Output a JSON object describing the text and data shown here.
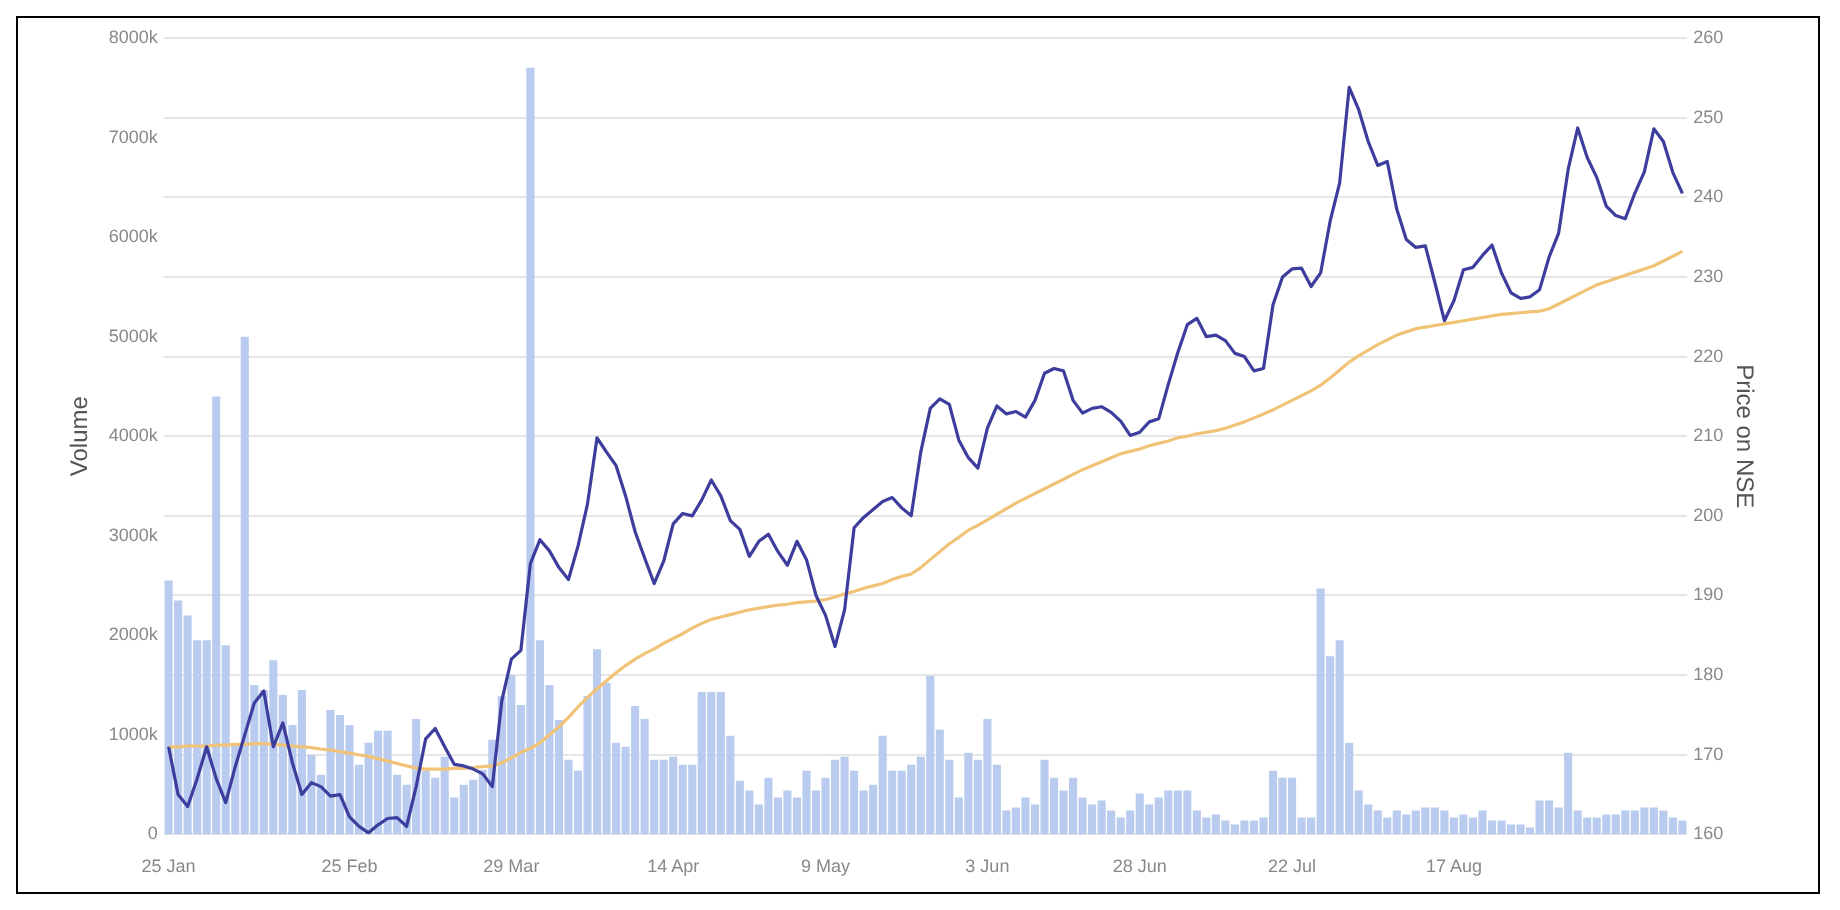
{
  "chart_data": {
    "type": "bar",
    "xlabel": null,
    "ylabel": "Volume",
    "y2label": "Price on NSE",
    "categories": [
      "25 Jan",
      null,
      null,
      null,
      null,
      null,
      null,
      null,
      null,
      null,
      null,
      null,
      null,
      null,
      null,
      null,
      null,
      null,
      null,
      "25 Feb",
      null,
      null,
      null,
      null,
      null,
      null,
      null,
      null,
      null,
      null,
      null,
      null,
      null,
      null,
      null,
      null,
      "29 Mar",
      null,
      null,
      null,
      null,
      null,
      null,
      null,
      null,
      null,
      null,
      null,
      null,
      null,
      null,
      null,
      null,
      "14 Apr",
      null,
      null,
      null,
      null,
      null,
      null,
      null,
      null,
      null,
      null,
      null,
      null,
      null,
      null,
      null,
      "9 May",
      null,
      null,
      null,
      null,
      null,
      null,
      null,
      null,
      null,
      null,
      null,
      null,
      null,
      null,
      null,
      null,
      "3 Jun",
      null,
      null,
      null,
      null,
      null,
      null,
      null,
      null,
      null,
      null,
      null,
      null,
      null,
      null,
      null,
      "28 Jun",
      null,
      null,
      null,
      null,
      null,
      null,
      null,
      null,
      null,
      null,
      null,
      null,
      null,
      null,
      null,
      "22 Jul",
      null,
      null,
      null,
      null,
      null,
      null,
      null,
      null,
      null,
      null,
      null,
      null,
      null,
      null,
      null,
      null,
      "17 Aug",
      null,
      null,
      null,
      null,
      null,
      null,
      null,
      null,
      null,
      null,
      null,
      null,
      null,
      null,
      null,
      null,
      null,
      null,
      null,
      null,
      null,
      null,
      null,
      null
    ],
    "series": [
      {
        "color": "#b9cbee",
        "values": [
          2550,
          2350,
          2200,
          1950,
          1950,
          4400,
          1900,
          900,
          5000,
          1500,
          1450,
          1750,
          1400,
          1100,
          1450,
          800,
          600,
          1250,
          1200,
          1100,
          700,
          920,
          1040,
          1040,
          600,
          500,
          1160,
          640,
          570,
          780,
          370,
          500,
          550,
          650,
          950,
          1390,
          1600,
          1300,
          7700,
          1950,
          1500,
          1150,
          750,
          640,
          1390,
          1860,
          1520,
          920,
          880,
          1290,
          1160,
          750,
          750,
          780,
          700,
          700,
          1430,
          1430,
          1430,
          990,
          540,
          440,
          300,
          570,
          370,
          440,
          370,
          640,
          440,
          570,
          750,
          780,
          640,
          440,
          500,
          990,
          640,
          640,
          700,
          780,
          1590,
          1050,
          750,
          370,
          820,
          750,
          1160,
          700,
          240,
          270,
          370,
          300,
          750,
          570,
          440,
          570,
          370,
          300,
          340,
          240,
          170,
          240,
          410,
          300,
          370,
          440,
          440,
          440,
          240,
          170,
          200,
          140,
          100,
          140,
          140,
          170,
          640,
          570,
          570,
          170,
          170,
          2470,
          1790,
          1950,
          920,
          440,
          300,
          240,
          170,
          240,
          200,
          240,
          270,
          270,
          240,
          170,
          200,
          170,
          240,
          140,
          140,
          100,
          100,
          70,
          340,
          340,
          270,
          820,
          240,
          170,
          170,
          200,
          200,
          240,
          240,
          270,
          270,
          240,
          170,
          140
        ]
      },
      {
        "type": "line",
        "axis": "y2",
        "color": "#3d3d9e",
        "values": [
          171.0,
          165,
          163.5,
          167,
          171,
          167,
          164,
          168.5,
          172.5,
          176.5,
          178,
          171,
          174,
          169,
          165,
          166.5,
          166,
          164.8,
          165,
          162.2,
          161,
          160.2,
          161.2,
          162,
          162.1,
          161,
          166,
          172,
          173.3,
          171,
          168.8,
          168.6,
          168.2,
          167.6,
          166,
          176.8,
          182,
          183.1,
          194,
          197,
          195.6,
          193.5,
          192,
          196.2,
          201.5,
          209.8,
          208,
          206.3,
          202.5,
          198,
          194.7,
          191.5,
          194.3,
          199,
          200.3,
          200,
          202,
          204.5,
          202.5,
          199.4,
          198.3,
          194.9,
          196.8,
          197.7,
          195.5,
          193.8,
          196.8,
          194.5,
          190,
          187.5,
          183.6,
          188.2,
          198.5,
          199.8,
          200.8,
          201.8,
          202.3,
          201,
          200,
          208,
          213.5,
          214.7,
          214,
          209.5,
          207.3,
          206,
          211,
          213.8,
          212.8,
          213.1,
          212.4,
          214.5,
          217.9,
          218.5,
          218.2,
          214.5,
          212.9,
          213.5,
          213.7,
          213,
          211.9,
          210.1,
          210.5,
          211.8,
          212.2,
          216.5,
          220.5,
          224,
          224.8,
          222.5,
          222.7,
          222,
          220.4,
          220,
          218.2,
          218.5,
          226.5,
          230,
          231,
          231.1,
          228.8,
          230.5,
          237,
          241.8,
          253.8,
          251,
          247,
          244,
          244.5,
          238.5,
          234.7,
          233.7,
          233.9,
          229.3,
          224.5,
          227,
          230.9,
          231.2,
          232.7,
          234,
          230.5,
          228,
          227.3,
          227.5,
          228.4,
          232.5,
          235.5,
          243.5,
          248.7,
          245,
          242.5,
          238.9,
          237.7,
          237.3,
          240.5,
          243.2,
          248.6,
          247,
          243.1,
          240.5
        ]
      },
      {
        "type": "line",
        "axis": "y2",
        "color": "#f0c377",
        "values": [
          171.0,
          171.0,
          171.1,
          171.1,
          171.1,
          171.2,
          171.2,
          171.3,
          171.3,
          171.4,
          171.4,
          171.3,
          171.2,
          171.1,
          171.0,
          170.9,
          170.7,
          170.6,
          170.4,
          170.2,
          170.0,
          169.8,
          169.5,
          169.2,
          168.9,
          168.6,
          168.3,
          168.2,
          168.2,
          168.2,
          168.3,
          168.3,
          168.4,
          168.5,
          168.6,
          169.0,
          169.6,
          170.3,
          170.8,
          171.5,
          172.5,
          173.5,
          174.7,
          176.0,
          177.2,
          178.3,
          179.3,
          180.3,
          181.2,
          182.0,
          182.7,
          183.3,
          184.0,
          184.6,
          185.2,
          185.9,
          186.5,
          187.0,
          187.3,
          187.6,
          187.9,
          188.2,
          188.4,
          188.6,
          188.8,
          188.9,
          189.1,
          189.2,
          189.3,
          189.5,
          189.8,
          190.2,
          190.5,
          190.9,
          191.2,
          191.5,
          192.0,
          192.4,
          192.7,
          193.5,
          194.5,
          195.5,
          196.5,
          197.3,
          198.2,
          198.8,
          199.5,
          200.2,
          200.9,
          201.6,
          202.2,
          202.8,
          203.4,
          204.0,
          204.6,
          205.2,
          205.8,
          206.3,
          206.8,
          207.3,
          207.8,
          208.1,
          208.4,
          208.8,
          209.1,
          209.4,
          209.8,
          210.0,
          210.3,
          210.5,
          210.7,
          211.0,
          211.4,
          211.8,
          212.3,
          212.8,
          213.3,
          213.9,
          214.5,
          215.1,
          215.7,
          216.4,
          217.3,
          218.3,
          219.3,
          220.1,
          220.8,
          221.5,
          222.1,
          222.7,
          223.1,
          223.5,
          223.7,
          223.9,
          224.1,
          224.3,
          224.5,
          224.7,
          224.9,
          225.1,
          225.3,
          225.4,
          225.5,
          225.6,
          225.7,
          226.0,
          226.6,
          227.2,
          227.8,
          228.4,
          229.0,
          229.4,
          229.8,
          230.2,
          230.6,
          231.0,
          231.4,
          232.0,
          232.6,
          233.2
        ]
      }
    ],
    "ylim": [
      0,
      8000
    ],
    "yticks": [
      0,
      {
        "value": 1000,
        "label": "1000k"
      },
      {
        "value": 2000,
        "label": "2000k"
      },
      {
        "value": 3000,
        "label": "3000k"
      },
      {
        "value": 4000,
        "label": "4000k"
      },
      {
        "value": 5000,
        "label": "5000k"
      },
      {
        "value": 6000,
        "label": "6000k"
      },
      {
        "value": 7000,
        "label": "7000k"
      },
      {
        "value": 8000,
        "label": "8000k"
      }
    ],
    "y2lim": [
      160,
      260
    ],
    "y2ticks": [
      160,
      170,
      180,
      190,
      200,
      210,
      220,
      230,
      240,
      250,
      260
    ],
    "grid": "y",
    "legend": false,
    "marker": "none",
    "line_style": "solid"
  }
}
